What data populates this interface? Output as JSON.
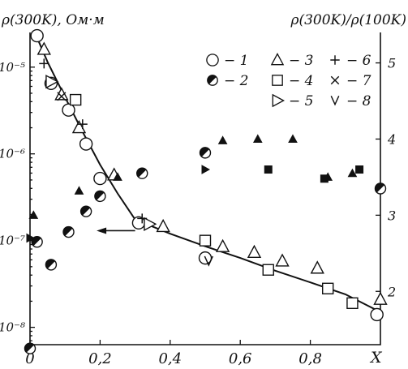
{
  "chart_data": {
    "type": "scatter",
    "title": "",
    "ylabel_left": "ρ(300K), Ом·м",
    "ylabel_right": "ρ(300K)/ρ(100K)",
    "xlabel": "X",
    "x_ticks": [
      "0",
      "0,2",
      "0,4",
      "0,6",
      "0,8"
    ],
    "y_left_ticks": [
      "10⁻⁵",
      "10⁻⁶",
      "10⁻⁷",
      "10⁻⁸"
    ],
    "y_right_ticks": [
      "2",
      "3",
      "4",
      "5"
    ],
    "xlim": [
      0,
      1.0
    ],
    "ylim_left_log10": [
      -8.2,
      -4.6
    ],
    "ylim_right": [
      1.3,
      5.4
    ],
    "legend_position": "top-right",
    "legend": [
      {
        "symbol": "open-circle",
        "label": "− 1"
      },
      {
        "symbol": "half-circle",
        "label": "− 2"
      },
      {
        "symbol": "open-triangle",
        "label": "− 3"
      },
      {
        "symbol": "open-square",
        "label": "− 4"
      },
      {
        "symbol": "right-triangle",
        "label": "− 5"
      },
      {
        "symbol": "plus",
        "label": "− 6"
      },
      {
        "symbol": "cross",
        "label": "− 7"
      },
      {
        "symbol": "check",
        "label": "− 8"
      }
    ],
    "series": [
      {
        "marker": "open-circle",
        "axis": "left",
        "x": [
          0.02,
          0.06,
          0.11,
          0.16,
          0.2,
          0.31,
          0.5,
          0.99
        ],
        "y": [
          2.3e-05,
          6.5e-06,
          3.2e-06,
          1.3e-06,
          5.2e-07,
          1.6e-07,
          6.3e-08,
          1.4e-08
        ]
      },
      {
        "marker": "open-triangle",
        "axis": "left",
        "x": [
          0.04,
          0.09,
          0.14,
          0.24,
          0.38,
          0.55,
          0.64,
          0.72,
          0.82,
          1.0
        ],
        "y": [
          1.6e-05,
          4.8e-06,
          2e-06,
          5.7e-07,
          1.45e-07,
          8.5e-08,
          7.3e-08,
          5.8e-08,
          4.8e-08,
          2.1e-08
        ]
      },
      {
        "marker": "open-square",
        "axis": "left",
        "x": [
          0.13,
          0.5,
          0.68,
          0.85,
          0.92
        ],
        "y": [
          4.2e-06,
          1e-07,
          4.6e-08,
          2.8e-08,
          1.9e-08
        ]
      },
      {
        "marker": "right-triangle",
        "axis": "left",
        "x": [
          0.06,
          0.34
        ],
        "y": [
          6.8e-06,
          1.55e-07
        ]
      },
      {
        "marker": "plus",
        "axis": "left",
        "x": [
          0.04,
          0.15,
          0.32
        ],
        "y": [
          1.1e-05,
          2.2e-06,
          1.8e-07
        ]
      },
      {
        "marker": "cross",
        "axis": "left",
        "x": [
          0.09
        ],
        "y": [
          4.6e-06
        ]
      },
      {
        "marker": "check",
        "axis": "left",
        "x": [
          0.51
        ],
        "y": [
          5.8e-08
        ]
      },
      {
        "marker": "half-circle",
        "axis": "right",
        "x": [
          0.0,
          0.02,
          0.06,
          0.11,
          0.16,
          0.2,
          0.32,
          0.5,
          1.0
        ],
        "y": [
          1.25,
          2.65,
          2.35,
          2.78,
          3.05,
          3.25,
          3.55,
          3.82,
          3.35
        ]
      },
      {
        "marker": "filled-triangle",
        "axis": "right",
        "x": [
          0.01,
          0.14,
          0.25,
          0.55,
          0.65,
          0.75,
          0.85,
          0.92
        ],
        "y": [
          3.0,
          3.32,
          3.5,
          3.98,
          4.0,
          4.0,
          3.5,
          3.55
        ]
      },
      {
        "marker": "filled-square",
        "axis": "right",
        "x": [
          0.68,
          0.84,
          0.94
        ],
        "y": [
          3.6,
          3.48,
          3.6
        ]
      },
      {
        "marker": "filled-right-triangle",
        "axis": "right",
        "x": [
          0.0,
          0.5
        ],
        "y": [
          2.7,
          3.6
        ]
      }
    ],
    "fit_curve_left": {
      "x": [
        0.02,
        0.05,
        0.1,
        0.15,
        0.2,
        0.25,
        0.3,
        0.4,
        0.5,
        0.6,
        0.7,
        0.8,
        0.9,
        1.0
      ],
      "y": [
        2.2e-05,
        1.15e-05,
        4.5e-06,
        1.8e-06,
        7.5e-07,
        3.5e-07,
        1.75e-07,
        1.2e-07,
        8.6e-08,
        6.3e-08,
        4.5e-08,
        3.3e-08,
        2.4e-08,
        1.5e-08
      ]
    },
    "arrow": {
      "x_from": 0.3,
      "x_to": 0.19,
      "axis": "left",
      "y": 1.3e-07
    }
  }
}
